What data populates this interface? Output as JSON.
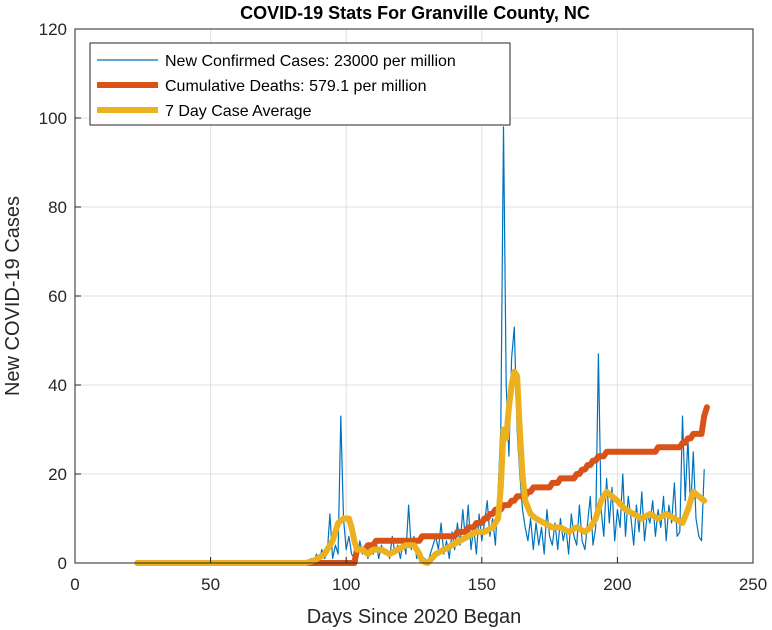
{
  "chart_data": {
    "type": "line",
    "title": "COVID-19 Stats For Granville County, NC",
    "xlabel": "Days Since 2020 Began",
    "ylabel": "New COVID-19 Cases",
    "xlim": [
      0,
      250
    ],
    "ylim": [
      0,
      120
    ],
    "xticks": [
      "0",
      "50",
      "100",
      "150",
      "200",
      "250"
    ],
    "yticks": [
      "0",
      "20",
      "40",
      "60",
      "80",
      "100",
      "120"
    ],
    "grid": true,
    "legend_position": "top-left",
    "series": [
      {
        "name": "New Confirmed Cases: 23000 per million",
        "color": "#0072BD",
        "points": [
          [
            23,
            0
          ],
          [
            86,
            0
          ],
          [
            87,
            1
          ],
          [
            88,
            0
          ],
          [
            89,
            2
          ],
          [
            90,
            0
          ],
          [
            91,
            3
          ],
          [
            92,
            1
          ],
          [
            93,
            2
          ],
          [
            94,
            11
          ],
          [
            95,
            1
          ],
          [
            96,
            4
          ],
          [
            97,
            2
          ],
          [
            98,
            33
          ],
          [
            99,
            10
          ],
          [
            100,
            3
          ],
          [
            101,
            6
          ],
          [
            102,
            2
          ],
          [
            103,
            1
          ],
          [
            104,
            0
          ],
          [
            105,
            5
          ],
          [
            106,
            2
          ],
          [
            107,
            4
          ],
          [
            108,
            1
          ],
          [
            109,
            3
          ],
          [
            110,
            2
          ],
          [
            111,
            5
          ],
          [
            112,
            1
          ],
          [
            113,
            4
          ],
          [
            114,
            2
          ],
          [
            115,
            3
          ],
          [
            116,
            1
          ],
          [
            117,
            6
          ],
          [
            118,
            2
          ],
          [
            119,
            4
          ],
          [
            120,
            1
          ],
          [
            121,
            5
          ],
          [
            122,
            2
          ],
          [
            123,
            13
          ],
          [
            124,
            3
          ],
          [
            125,
            6
          ],
          [
            126,
            1
          ],
          [
            127,
            3
          ],
          [
            128,
            0
          ],
          [
            129,
            1
          ],
          [
            130,
            0
          ],
          [
            131,
            2
          ],
          [
            132,
            4
          ],
          [
            133,
            6
          ],
          [
            134,
            3
          ],
          [
            135,
            9
          ],
          [
            136,
            2
          ],
          [
            137,
            5
          ],
          [
            138,
            1
          ],
          [
            139,
            7
          ],
          [
            140,
            3
          ],
          [
            141,
            9
          ],
          [
            142,
            4
          ],
          [
            143,
            12
          ],
          [
            144,
            5
          ],
          [
            145,
            13
          ],
          [
            146,
            3
          ],
          [
            147,
            8
          ],
          [
            148,
            2
          ],
          [
            149,
            11
          ],
          [
            150,
            5
          ],
          [
            151,
            9
          ],
          [
            152,
            14
          ],
          [
            153,
            6
          ],
          [
            154,
            10
          ],
          [
            155,
            4
          ],
          [
            156,
            16
          ],
          [
            157,
            30
          ],
          [
            158,
            98
          ],
          [
            159,
            40
          ],
          [
            160,
            24
          ],
          [
            161,
            46
          ],
          [
            162,
            53
          ],
          [
            163,
            30
          ],
          [
            164,
            20
          ],
          [
            165,
            12
          ],
          [
            166,
            8
          ],
          [
            167,
            5
          ],
          [
            168,
            10
          ],
          [
            169,
            3
          ],
          [
            170,
            9
          ],
          [
            171,
            4
          ],
          [
            172,
            8
          ],
          [
            173,
            2
          ],
          [
            174,
            12
          ],
          [
            175,
            6
          ],
          [
            176,
            4
          ],
          [
            177,
            9
          ],
          [
            178,
            3
          ],
          [
            179,
            10
          ],
          [
            180,
            5
          ],
          [
            181,
            8
          ],
          [
            182,
            2
          ],
          [
            183,
            11
          ],
          [
            184,
            6
          ],
          [
            185,
            4
          ],
          [
            186,
            13
          ],
          [
            187,
            5
          ],
          [
            188,
            3
          ],
          [
            189,
            9
          ],
          [
            190,
            15
          ],
          [
            191,
            4
          ],
          [
            192,
            8
          ],
          [
            193,
            47
          ],
          [
            194,
            12
          ],
          [
            195,
            6
          ],
          [
            196,
            19
          ],
          [
            197,
            9
          ],
          [
            198,
            17
          ],
          [
            199,
            5
          ],
          [
            200,
            12
          ],
          [
            201,
            8
          ],
          [
            202,
            20
          ],
          [
            203,
            6
          ],
          [
            204,
            15
          ],
          [
            205,
            10
          ],
          [
            206,
            4
          ],
          [
            207,
            13
          ],
          [
            208,
            7
          ],
          [
            209,
            16
          ],
          [
            210,
            5
          ],
          [
            211,
            11
          ],
          [
            212,
            9
          ],
          [
            213,
            14
          ],
          [
            214,
            6
          ],
          [
            215,
            12
          ],
          [
            216,
            8
          ],
          [
            217,
            15
          ],
          [
            218,
            5
          ],
          [
            219,
            13
          ],
          [
            220,
            9
          ],
          [
            221,
            18
          ],
          [
            222,
            6
          ],
          [
            223,
            7
          ],
          [
            224,
            33
          ],
          [
            225,
            14
          ],
          [
            226,
            28
          ],
          [
            227,
            12
          ],
          [
            228,
            25
          ],
          [
            229,
            10
          ],
          [
            230,
            6
          ],
          [
            231,
            5
          ],
          [
            232,
            21
          ]
        ]
      },
      {
        "name": "Cumulative Deaths: 579.1 per million",
        "color": "#D95319",
        "points": [
          [
            23,
            0
          ],
          [
            100,
            0
          ],
          [
            103,
            0
          ],
          [
            104,
            3
          ],
          [
            107,
            3
          ],
          [
            108,
            4
          ],
          [
            110,
            4
          ],
          [
            111,
            5
          ],
          [
            127,
            5
          ],
          [
            128,
            6
          ],
          [
            140,
            6
          ],
          [
            141,
            7
          ],
          [
            144,
            7
          ],
          [
            145,
            8
          ],
          [
            147,
            8
          ],
          [
            148,
            9
          ],
          [
            150,
            9
          ],
          [
            151,
            10
          ],
          [
            152,
            10
          ],
          [
            153,
            11
          ],
          [
            154,
            11
          ],
          [
            155,
            12
          ],
          [
            157,
            12
          ],
          [
            158,
            13
          ],
          [
            160,
            13
          ],
          [
            161,
            14
          ],
          [
            162,
            14
          ],
          [
            163,
            15
          ],
          [
            166,
            15
          ],
          [
            167,
            16
          ],
          [
            168,
            16
          ],
          [
            169,
            17
          ],
          [
            175,
            17
          ],
          [
            176,
            18
          ],
          [
            178,
            18
          ],
          [
            179,
            19
          ],
          [
            184,
            19
          ],
          [
            185,
            20
          ],
          [
            186,
            20
          ],
          [
            187,
            21
          ],
          [
            188,
            21
          ],
          [
            189,
            22
          ],
          [
            190,
            22
          ],
          [
            191,
            23
          ],
          [
            192,
            23
          ],
          [
            193,
            24
          ],
          [
            195,
            24
          ],
          [
            196,
            25
          ],
          [
            214,
            25
          ],
          [
            215,
            26
          ],
          [
            223,
            26
          ],
          [
            224,
            27
          ],
          [
            225,
            27
          ],
          [
            226,
            28
          ],
          [
            227,
            28
          ],
          [
            228,
            29
          ],
          [
            231,
            29
          ],
          [
            232,
            33
          ],
          [
            233,
            35
          ]
        ]
      },
      {
        "name": "7 Day Case Average",
        "color": "#EDB120",
        "points": [
          [
            23,
            0
          ],
          [
            85,
            0
          ],
          [
            88,
            0.5
          ],
          [
            92,
            2
          ],
          [
            95,
            5
          ],
          [
            97,
            9
          ],
          [
            99,
            10
          ],
          [
            101,
            10
          ],
          [
            102,
            8
          ],
          [
            103,
            5
          ],
          [
            104,
            3
          ],
          [
            106,
            3
          ],
          [
            108,
            2
          ],
          [
            110,
            3
          ],
          [
            113,
            3
          ],
          [
            116,
            2
          ],
          [
            119,
            3
          ],
          [
            122,
            4
          ],
          [
            125,
            4
          ],
          [
            127,
            2
          ],
          [
            128,
            0.5
          ],
          [
            130,
            0
          ],
          [
            133,
            2
          ],
          [
            136,
            3
          ],
          [
            139,
            4
          ],
          [
            142,
            5
          ],
          [
            145,
            6
          ],
          [
            148,
            7
          ],
          [
            151,
            7
          ],
          [
            154,
            8
          ],
          [
            156,
            10
          ],
          [
            157,
            17
          ],
          [
            158,
            30
          ],
          [
            159,
            28
          ],
          [
            160,
            35
          ],
          [
            161,
            40
          ],
          [
            162,
            43
          ],
          [
            163,
            42
          ],
          [
            164,
            30
          ],
          [
            165,
            20
          ],
          [
            166,
            14
          ],
          [
            168,
            11
          ],
          [
            170,
            10
          ],
          [
            173,
            9
          ],
          [
            176,
            8
          ],
          [
            179,
            8
          ],
          [
            182,
            7
          ],
          [
            185,
            8
          ],
          [
            188,
            7
          ],
          [
            190,
            8
          ],
          [
            192,
            10
          ],
          [
            194,
            14
          ],
          [
            196,
            16
          ],
          [
            198,
            15
          ],
          [
            200,
            14
          ],
          [
            203,
            12
          ],
          [
            206,
            11
          ],
          [
            209,
            10
          ],
          [
            212,
            11
          ],
          [
            215,
            10
          ],
          [
            218,
            11
          ],
          [
            221,
            10
          ],
          [
            224,
            9
          ],
          [
            226,
            12
          ],
          [
            228,
            16
          ],
          [
            230,
            15
          ],
          [
            232,
            14
          ]
        ]
      }
    ]
  }
}
